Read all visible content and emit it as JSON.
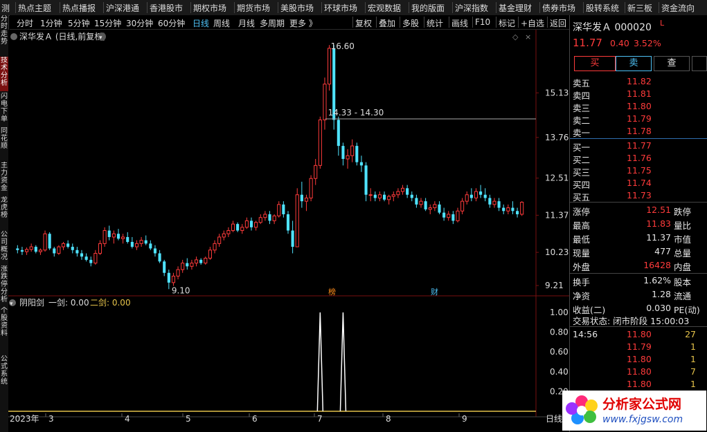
{
  "top_menu": [
    "测",
    "热点主题",
    "热点播报",
    "沪深港通",
    "香港股市",
    "期权市场",
    "期货市场",
    "美股市场",
    "环球市场",
    "宏观数据",
    "我的版面",
    "沪深指数",
    "基金理财",
    "债券市场",
    "股转系统",
    "新三板",
    "资金流向"
  ],
  "toolbar": {
    "periods": [
      "分时",
      "1分钟",
      "5分钟",
      "15分钟",
      "30分钟",
      "60分钟",
      "日线",
      "周线",
      "月线",
      "多周期",
      "更多 》"
    ],
    "active_period": "日线",
    "actions": [
      "复权",
      "叠加",
      "多股",
      "统计",
      "画线",
      "F10",
      "标记",
      "+自选",
      "返回"
    ]
  },
  "left_tabs": [
    "分时走势",
    "技术分析",
    "闪电下单",
    "同花顺",
    "主力资金",
    "龙虎榜",
    "公司概况",
    "涨跌停分析",
    "个股资料",
    "公式系统"
  ],
  "left_active": "技术分析",
  "chart": {
    "title": "深华发Ａ (日线,前复权)",
    "high_label": "16.60",
    "low_label": "9.10",
    "range_label": "14.33 - 14.30",
    "price_axis": [
      "15.13",
      "13.76",
      "12.51",
      "11.37",
      "10.23",
      "9.21"
    ],
    "markers": [
      {
        "text": "榜",
        "color": "#ff8c1a"
      },
      {
        "text": "财",
        "color": "#4fc3f7"
      }
    ],
    "dates": [
      "2023年",
      "3",
      "4",
      "5",
      "6",
      "7",
      "8",
      "9"
    ],
    "period_footer": "日线"
  },
  "indicator": {
    "name": "阴阳剑",
    "jian1_label": "一剑: 0.00",
    "jian2_label": "二剑: 0.00",
    "axis": [
      "1.00",
      "0.80",
      "0.60",
      "0.40",
      "0.20"
    ]
  },
  "chart_data": {
    "type": "candlestick",
    "ylim": [
      9.0,
      16.9
    ],
    "up_color": "#ff3b3b",
    "down_color": "#4fe3ff",
    "candles": [
      [
        10.35,
        10.45,
        10.2,
        10.3
      ],
      [
        10.3,
        10.4,
        10.15,
        10.25
      ],
      [
        10.25,
        10.38,
        10.15,
        10.32
      ],
      [
        10.32,
        10.5,
        10.25,
        10.4
      ],
      [
        10.4,
        10.45,
        10.2,
        10.25
      ],
      [
        10.25,
        10.35,
        10.15,
        10.3
      ],
      [
        10.3,
        10.9,
        10.25,
        10.8
      ],
      [
        10.8,
        10.85,
        10.3,
        10.35
      ],
      [
        10.35,
        10.4,
        10.1,
        10.2
      ],
      [
        10.2,
        10.45,
        10.15,
        10.4
      ],
      [
        10.4,
        10.55,
        10.3,
        10.5
      ],
      [
        10.5,
        10.6,
        10.35,
        10.4
      ],
      [
        10.4,
        10.5,
        10.2,
        10.3
      ],
      [
        10.3,
        10.4,
        10.1,
        10.2
      ],
      [
        10.2,
        10.3,
        10.0,
        10.1
      ],
      [
        10.1,
        10.2,
        9.95,
        10.0
      ],
      [
        10.0,
        10.1,
        9.8,
        9.9
      ],
      [
        9.9,
        10.3,
        9.85,
        10.2
      ],
      [
        10.2,
        10.6,
        10.15,
        10.5
      ],
      [
        10.5,
        11.0,
        10.4,
        10.9
      ],
      [
        10.9,
        11.05,
        10.6,
        10.7
      ],
      [
        10.7,
        10.9,
        10.5,
        10.8
      ],
      [
        10.8,
        10.95,
        10.6,
        10.65
      ],
      [
        10.65,
        10.8,
        10.5,
        10.7
      ],
      [
        10.7,
        10.85,
        10.5,
        10.55
      ],
      [
        10.55,
        10.7,
        10.35,
        10.4
      ],
      [
        10.4,
        10.6,
        10.3,
        10.5
      ],
      [
        10.5,
        10.7,
        10.4,
        10.6
      ],
      [
        10.6,
        10.75,
        10.45,
        10.5
      ],
      [
        10.5,
        10.6,
        10.3,
        10.35
      ],
      [
        10.35,
        10.45,
        10.1,
        10.2
      ],
      [
        10.2,
        10.3,
        9.9,
        9.95
      ],
      [
        9.95,
        10.0,
        9.5,
        9.6
      ],
      [
        9.6,
        9.7,
        9.1,
        9.3
      ],
      [
        9.3,
        9.6,
        9.2,
        9.5
      ],
      [
        9.5,
        9.8,
        9.4,
        9.7
      ],
      [
        9.7,
        10.0,
        9.6,
        9.9
      ],
      [
        9.9,
        10.05,
        9.7,
        9.8
      ],
      [
        9.8,
        10.0,
        9.7,
        9.9
      ],
      [
        9.9,
        10.1,
        9.8,
        10.0
      ],
      [
        10.0,
        10.05,
        9.85,
        9.9
      ],
      [
        9.9,
        10.1,
        9.85,
        10.05
      ],
      [
        10.05,
        10.4,
        10.0,
        10.3
      ],
      [
        10.3,
        10.6,
        10.2,
        10.5
      ],
      [
        10.5,
        10.8,
        10.4,
        10.7
      ],
      [
        10.7,
        10.9,
        10.6,
        10.8
      ],
      [
        10.8,
        11.0,
        10.7,
        10.9
      ],
      [
        10.9,
        11.2,
        10.85,
        11.1
      ],
      [
        11.1,
        11.15,
        10.85,
        10.9
      ],
      [
        10.9,
        11.1,
        10.8,
        11.0
      ],
      [
        11.0,
        11.3,
        10.95,
        11.2
      ],
      [
        11.2,
        11.3,
        10.9,
        11.0
      ],
      [
        11.0,
        11.2,
        10.9,
        11.15
      ],
      [
        11.15,
        11.4,
        11.1,
        11.3
      ],
      [
        11.3,
        11.5,
        11.2,
        11.4
      ],
      [
        11.4,
        11.5,
        11.1,
        11.2
      ],
      [
        11.2,
        11.4,
        11.1,
        11.35
      ],
      [
        11.35,
        11.8,
        11.3,
        11.7
      ],
      [
        11.7,
        11.8,
        11.3,
        11.4
      ],
      [
        11.4,
        11.5,
        10.8,
        10.9
      ],
      [
        10.9,
        11.2,
        10.2,
        10.4
      ],
      [
        10.4,
        12.2,
        10.4,
        12.0
      ],
      [
        12.0,
        12.4,
        11.6,
        11.8
      ],
      [
        11.8,
        12.0,
        11.5,
        11.9
      ],
      [
        11.9,
        12.6,
        11.8,
        12.5
      ],
      [
        12.5,
        13.1,
        12.3,
        12.9
      ],
      [
        12.9,
        14.4,
        12.8,
        14.3
      ],
      [
        14.3,
        15.6,
        14.0,
        15.4
      ],
      [
        15.4,
        16.6,
        15.2,
        16.5
      ],
      [
        16.5,
        16.6,
        14.0,
        14.3
      ],
      [
        14.3,
        14.4,
        13.2,
        13.5
      ],
      [
        13.5,
        13.6,
        12.9,
        13.1
      ],
      [
        13.1,
        13.4,
        12.8,
        13.2
      ],
      [
        13.2,
        13.7,
        13.0,
        13.5
      ],
      [
        13.5,
        13.6,
        12.9,
        13.0
      ],
      [
        13.0,
        13.2,
        12.7,
        12.9
      ],
      [
        12.9,
        13.0,
        11.8,
        12.0
      ],
      [
        12.0,
        12.2,
        11.8,
        12.0
      ],
      [
        12.0,
        12.1,
        11.8,
        11.9
      ],
      [
        11.9,
        12.1,
        11.8,
        12.0
      ],
      [
        12.0,
        12.1,
        11.8,
        11.85
      ],
      [
        11.85,
        12.0,
        11.7,
        11.95
      ],
      [
        11.95,
        12.1,
        11.8,
        12.0
      ],
      [
        12.0,
        12.2,
        11.9,
        12.1
      ],
      [
        12.1,
        12.3,
        12.0,
        12.2
      ],
      [
        12.2,
        12.3,
        11.9,
        12.0
      ],
      [
        12.0,
        12.1,
        11.8,
        11.9
      ],
      [
        11.9,
        12.0,
        11.6,
        11.7
      ],
      [
        11.7,
        11.9,
        11.6,
        11.8
      ],
      [
        11.8,
        11.9,
        11.5,
        11.55
      ],
      [
        11.55,
        11.7,
        11.4,
        11.6
      ],
      [
        11.6,
        11.8,
        11.5,
        11.7
      ],
      [
        11.7,
        11.8,
        11.4,
        11.45
      ],
      [
        11.45,
        11.6,
        11.2,
        11.3
      ],
      [
        11.3,
        11.5,
        11.2,
        11.4
      ],
      [
        11.4,
        11.5,
        11.1,
        11.2
      ],
      [
        11.2,
        11.6,
        11.15,
        11.5
      ],
      [
        11.5,
        11.9,
        11.4,
        11.8
      ],
      [
        11.8,
        12.1,
        11.7,
        12.0
      ],
      [
        12.0,
        12.2,
        11.8,
        11.9
      ],
      [
        11.9,
        12.2,
        11.8,
        12.1
      ],
      [
        12.1,
        12.3,
        11.9,
        12.0
      ],
      [
        12.0,
        12.2,
        11.8,
        11.9
      ],
      [
        11.9,
        12.0,
        11.6,
        11.7
      ],
      [
        11.7,
        11.9,
        11.6,
        11.8
      ],
      [
        11.8,
        11.9,
        11.5,
        11.6
      ],
      [
        11.6,
        11.7,
        11.4,
        11.5
      ],
      [
        11.5,
        11.7,
        11.4,
        11.6
      ],
      [
        11.6,
        11.8,
        11.4,
        11.5
      ],
      [
        11.5,
        11.6,
        11.3,
        11.4
      ],
      [
        11.4,
        11.8,
        11.35,
        11.77
      ]
    ],
    "indicator_spikes_at_candle": [
      66,
      71
    ]
  },
  "quote": {
    "name_code": "深华发Ａ 000020",
    "flag": "L",
    "price": "11.77",
    "change": "0.40",
    "pct": "3.52%",
    "buy_btn": "买",
    "sell_btn": "卖",
    "query_btn": "查",
    "sells": [
      {
        "label": "卖五",
        "price": "11.82"
      },
      {
        "label": "卖四",
        "price": "11.81"
      },
      {
        "label": "卖三",
        "price": "11.80"
      },
      {
        "label": "卖二",
        "price": "11.79"
      },
      {
        "label": "卖一",
        "price": "11.78"
      }
    ],
    "buys": [
      {
        "label": "买一",
        "price": "11.77"
      },
      {
        "label": "买二",
        "price": "11.76"
      },
      {
        "label": "买三",
        "price": "11.75"
      },
      {
        "label": "买四",
        "price": "11.74"
      },
      {
        "label": "买五",
        "price": "11.73"
      }
    ],
    "stats": [
      {
        "label": "涨停",
        "value": "12.51",
        "color": "red",
        "label2": "跌停"
      },
      {
        "label": "最高",
        "value": "11.83",
        "color": "red",
        "label2": "量比"
      },
      {
        "label": "最低",
        "value": "11.37",
        "color": "white",
        "label2": "市值"
      },
      {
        "label": "现量",
        "value": "477",
        "color": "white",
        "label2": "总量"
      },
      {
        "label": "外盘",
        "value": "16428",
        "color": "red",
        "label2": "内盘"
      }
    ],
    "stats2": [
      {
        "label": "换手",
        "value": "1.62%",
        "label2": "股本"
      },
      {
        "label": "净资",
        "value": "1.28",
        "label2": "流通"
      },
      {
        "label": "收益(二)",
        "value": "0.030",
        "label2": "PE(动)"
      }
    ],
    "trade_state": "交易状态: 闭市阶段 15:00:03",
    "ticks": [
      {
        "time": "14:56",
        "price": "11.80",
        "vol": "27"
      },
      {
        "time": "",
        "price": "11.79",
        "vol": "1"
      },
      {
        "time": "",
        "price": "11.80",
        "vol": "1"
      },
      {
        "time": "",
        "price": "11.80",
        "vol": "7"
      },
      {
        "time": "",
        "price": "11.80",
        "vol": "1"
      }
    ]
  },
  "logo": {
    "title": "分析家公式网",
    "url": "www.fxjgsw.com"
  }
}
